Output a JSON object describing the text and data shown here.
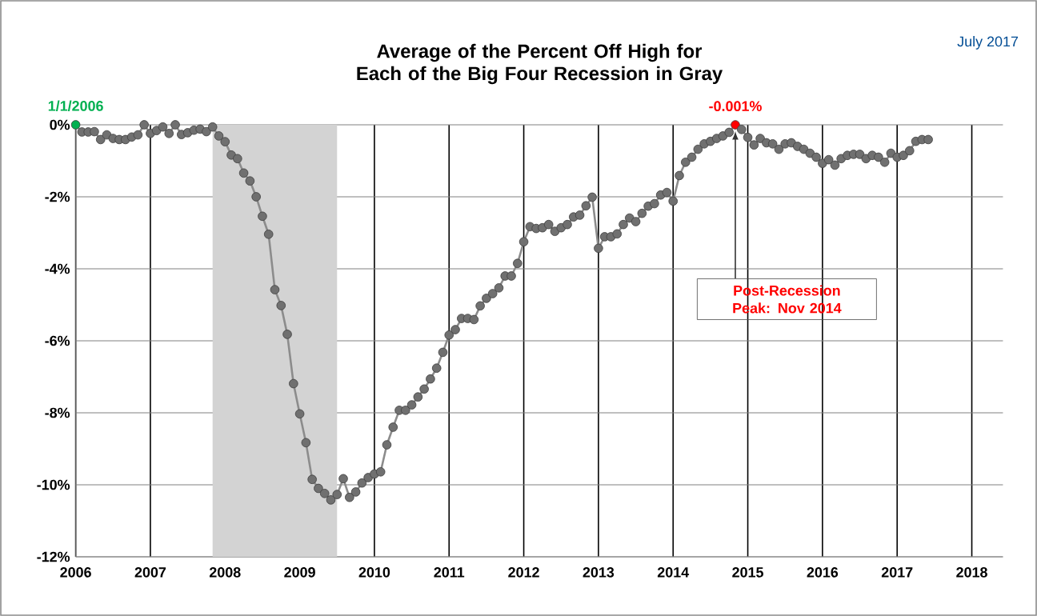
{
  "chart_data": {
    "type": "line",
    "title": "Average of the Percent Off High for Each of the Big Four Recession in Gray",
    "annotations": [
      {
        "text": "1/1/2006",
        "x": "2006-01",
        "y": 0
      },
      {
        "text": "-0.001%",
        "x": "2014-11",
        "y": -0.001
      },
      "July 2017",
      {
        "text": "Post-Recession Peak: Nov 2014",
        "x": "2014-11",
        "y": -0.001
      }
    ],
    "x": [
      "2006-01",
      "2006-02",
      "2006-03",
      "2006-04",
      "2006-05",
      "2006-06",
      "2006-07",
      "2006-08",
      "2006-09",
      "2006-10",
      "2006-11",
      "2006-12",
      "2007-01",
      "2007-02",
      "2007-03",
      "2007-04",
      "2007-05",
      "2007-06",
      "2007-07",
      "2007-08",
      "2007-09",
      "2007-10",
      "2007-11",
      "2007-12",
      "2008-01",
      "2008-02",
      "2008-03",
      "2008-04",
      "2008-05",
      "2008-06",
      "2008-07",
      "2008-08",
      "2008-09",
      "2008-10",
      "2008-11",
      "2008-12",
      "2009-01",
      "2009-02",
      "2009-03",
      "2009-04",
      "2009-05",
      "2009-06",
      "2009-07",
      "2009-08",
      "2009-09",
      "2009-10",
      "2009-11",
      "2009-12",
      "2010-01",
      "2010-02",
      "2010-03",
      "2010-04",
      "2010-05",
      "2010-06",
      "2010-07",
      "2010-08",
      "2010-09",
      "2010-10",
      "2010-11",
      "2010-12",
      "2011-01",
      "2011-02",
      "2011-03",
      "2011-04",
      "2011-05",
      "2011-06",
      "2011-07",
      "2011-08",
      "2011-09",
      "2011-10",
      "2011-11",
      "2011-12",
      "2012-01",
      "2012-02",
      "2012-03",
      "2012-04",
      "2012-05",
      "2012-06",
      "2012-07",
      "2012-08",
      "2012-09",
      "2012-10",
      "2012-11",
      "2012-12",
      "2013-01",
      "2013-02",
      "2013-03",
      "2013-04",
      "2013-05",
      "2013-06",
      "2013-07",
      "2013-08",
      "2013-09",
      "2013-10",
      "2013-11",
      "2013-12",
      "2014-01",
      "2014-02",
      "2014-03",
      "2014-04",
      "2014-05",
      "2014-06",
      "2014-07",
      "2014-08",
      "2014-09",
      "2014-10",
      "2014-11",
      "2014-12",
      "2015-01",
      "2015-02",
      "2015-03",
      "2015-04",
      "2015-05",
      "2015-06",
      "2015-07",
      "2015-08",
      "2015-09",
      "2015-10",
      "2015-11",
      "2015-12",
      "2016-01",
      "2016-02",
      "2016-03",
      "2016-04",
      "2016-05",
      "2016-06",
      "2016-07",
      "2016-08",
      "2016-09",
      "2016-10",
      "2016-11",
      "2016-12",
      "2017-01",
      "2017-02",
      "2017-03",
      "2017-04",
      "2017-05",
      "2017-06"
    ],
    "values": [
      0,
      -0.2,
      -0.2,
      -0.19,
      -0.41,
      -0.28,
      -0.38,
      -0.41,
      -0.41,
      -0.34,
      -0.28,
      0,
      -0.24,
      -0.16,
      -0.06,
      -0.24,
      0,
      -0.27,
      -0.22,
      -0.15,
      -0.12,
      -0.19,
      -0.06,
      -0.31,
      -0.47,
      -0.84,
      -0.94,
      -1.34,
      -1.56,
      -2.0,
      -2.54,
      -3.04,
      -4.58,
      -5.02,
      -5.82,
      -7.19,
      -8.03,
      -8.83,
      -9.85,
      -10.1,
      -10.24,
      -10.42,
      -10.27,
      -9.83,
      -10.35,
      -10.2,
      -9.95,
      -9.8,
      -9.7,
      -9.64,
      -8.89,
      -8.4,
      -7.93,
      -7.93,
      -7.78,
      -7.56,
      -7.34,
      -7.06,
      -6.76,
      -6.32,
      -5.84,
      -5.69,
      -5.38,
      -5.38,
      -5.41,
      -5.03,
      -4.82,
      -4.69,
      -4.53,
      -4.2,
      -4.2,
      -3.85,
      -3.25,
      -2.83,
      -2.88,
      -2.86,
      -2.77,
      -2.96,
      -2.86,
      -2.77,
      -2.56,
      -2.51,
      -2.25,
      -2.01,
      -3.43,
      -3.11,
      -3.11,
      -3.03,
      -2.77,
      -2.59,
      -2.69,
      -2.46,
      -2.26,
      -2.19,
      -1.95,
      -1.88,
      -2.12,
      -1.41,
      -1.04,
      -0.9,
      -0.68,
      -0.53,
      -0.46,
      -0.38,
      -0.31,
      -0.21,
      -0.001,
      -0.13,
      -0.35,
      -0.56,
      -0.38,
      -0.5,
      -0.53,
      -0.68,
      -0.53,
      -0.5,
      -0.6,
      -0.68,
      -0.79,
      -0.9,
      -1.07,
      -0.97,
      -1.12,
      -0.94,
      -0.85,
      -0.82,
      -0.82,
      -0.94,
      -0.85,
      -0.9,
      -1.04,
      -0.79,
      -0.9,
      -0.85,
      -0.72,
      -0.46,
      -0.41,
      -0.41
    ],
    "color": "#8c8c8c",
    "colors": [
      "#00b050",
      "#707070",
      "#707070",
      "#707070",
      "#707070",
      "#707070",
      "#707070",
      "#707070",
      "#707070",
      "#707070",
      "#707070",
      "#707070",
      "#707070",
      "#707070",
      "#707070",
      "#707070",
      "#707070",
      "#707070",
      "#707070",
      "#707070",
      "#707070",
      "#707070",
      "#707070",
      "#707070",
      "#707070",
      "#707070",
      "#707070",
      "#707070",
      "#707070",
      "#707070",
      "#707070",
      "#707070",
      "#707070",
      "#707070",
      "#707070",
      "#707070",
      "#707070",
      "#707070",
      "#707070",
      "#707070",
      "#707070",
      "#707070",
      "#707070",
      "#707070",
      "#707070",
      "#707070",
      "#707070",
      "#707070",
      "#707070",
      "#707070",
      "#707070",
      "#707070",
      "#707070",
      "#707070",
      "#707070",
      "#707070",
      "#707070",
      "#707070",
      "#707070",
      "#707070",
      "#707070",
      "#707070",
      "#707070",
      "#707070",
      "#707070",
      "#707070",
      "#707070",
      "#707070",
      "#707070",
      "#707070",
      "#707070",
      "#707070",
      "#707070",
      "#707070",
      "#707070",
      "#707070",
      "#707070",
      "#707070",
      "#707070",
      "#707070",
      "#707070",
      "#707070",
      "#707070",
      "#707070",
      "#707070",
      "#707070",
      "#707070",
      "#707070",
      "#707070",
      "#707070",
      "#707070",
      "#707070",
      "#707070",
      "#707070",
      "#707070",
      "#707070",
      "#707070",
      "#707070",
      "#707070",
      "#707070",
      "#707070",
      "#707070",
      "#707070",
      "#707070",
      "#707070",
      "#707070",
      "#ff0000",
      "#707070",
      "#707070",
      "#707070",
      "#707070",
      "#707070",
      "#707070",
      "#707070",
      "#707070",
      "#707070",
      "#707070",
      "#707070",
      "#707070",
      "#707070",
      "#707070",
      "#707070",
      "#707070",
      "#707070",
      "#707070",
      "#707070",
      "#707070",
      "#707070",
      "#707070",
      "#707070",
      "#707070",
      "#707070",
      "#707070",
      "#707070",
      "#707070",
      "#707070",
      "#707070",
      "#707070"
    ],
    "xlim": [
      "2006-01",
      "2018-06"
    ],
    "ylim": [
      -12,
      0
    ],
    "xticks": [
      "2006",
      "2007",
      "2008",
      "2009",
      "2010",
      "2011",
      "2012",
      "2013",
      "2014",
      "2015",
      "2016",
      "2017",
      "2018"
    ],
    "yticks": [
      {
        "value": 0,
        "label": "0%"
      },
      {
        "value": -2,
        "label": "-2%"
      },
      {
        "value": -4,
        "label": "-4%"
      },
      {
        "value": -6,
        "label": "-6%"
      },
      {
        "value": -8,
        "label": "-8%"
      },
      {
        "value": -10,
        "label": "-10%"
      },
      {
        "value": -12,
        "label": "-12%"
      }
    ],
    "bands": [
      {
        "axis": "x",
        "from": "2007-11",
        "to": "2009-07",
        "color": "#d3d3d3"
      }
    ],
    "grid": true,
    "marker": "circle",
    "line_style": "solid"
  }
}
